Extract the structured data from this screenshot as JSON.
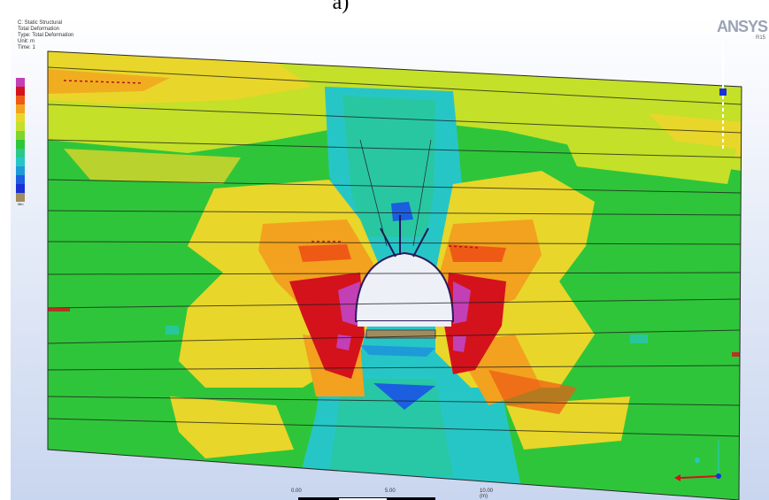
{
  "caption": "a)",
  "viewport": {
    "info_lines": [
      "C: Static Structural",
      "Total Deformation",
      "Type: Total Deformation",
      "Unit: m",
      "Time: 1"
    ],
    "logo_text": "ANSYS",
    "logo_version": "R15",
    "legend": [
      {
        "color": "#c33fb5",
        "label": ""
      },
      {
        "color": "#d4121b",
        "label": ""
      },
      {
        "color": "#ee5a16",
        "label": ""
      },
      {
        "color": "#f2a21e",
        "label": ""
      },
      {
        "color": "#e9d62a",
        "label": ""
      },
      {
        "color": "#c4e029",
        "label": ""
      },
      {
        "color": "#7fd52e",
        "label": ""
      },
      {
        "color": "#2fc53a",
        "label": ""
      },
      {
        "color": "#2ac88a",
        "label": ""
      },
      {
        "color": "#27c6c6",
        "label": ""
      },
      {
        "color": "#1f9ad9",
        "label": ""
      },
      {
        "color": "#1b5ee0",
        "label": ""
      },
      {
        "color": "#1a2fd6",
        "label": ""
      },
      {
        "color": "#a08c5c",
        "label": ""
      }
    ],
    "legend_max_text": "",
    "legend_min_text": "Min",
    "scale_labels": [
      "0.00",
      "",
      "5.00",
      "",
      "10.00 (m)"
    ]
  }
}
